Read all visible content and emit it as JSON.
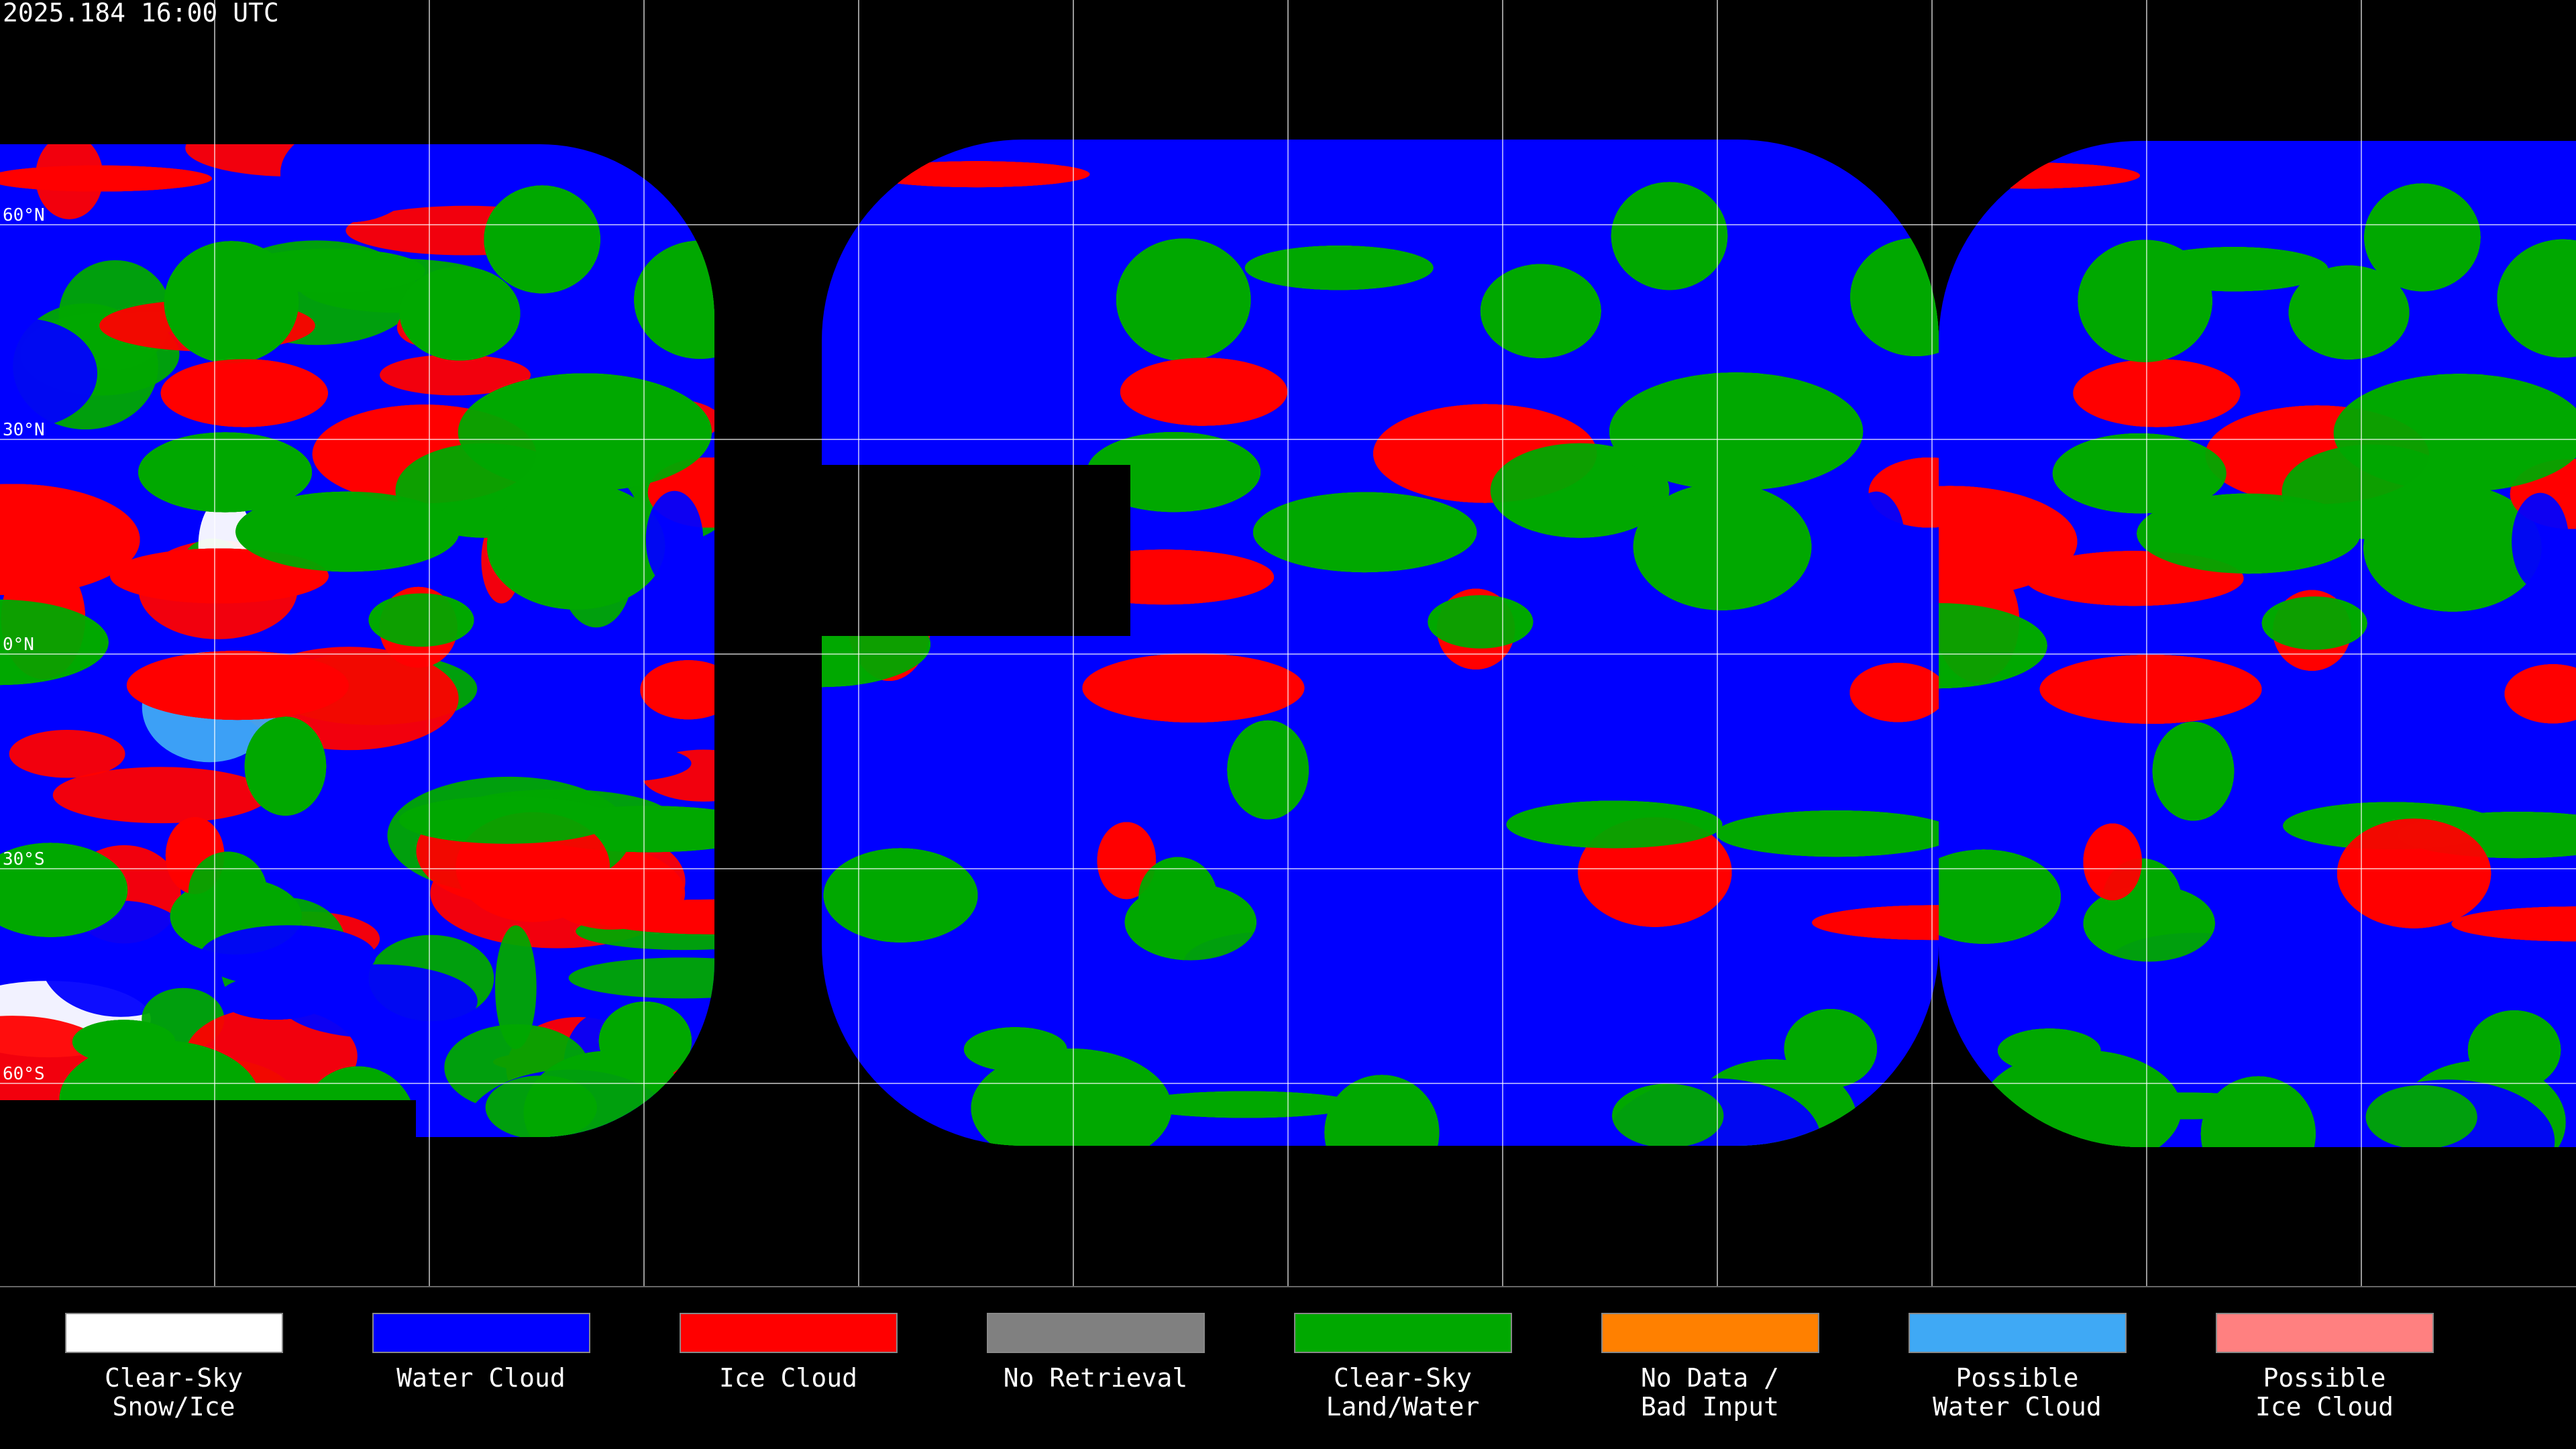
{
  "header": {
    "timestamp": "2025.184 16:00 UTC"
  },
  "latitude_labels": [
    "60°N",
    "30°N",
    "0°N",
    "30°S",
    "60°S"
  ],
  "legend": {
    "items": [
      {
        "lines": [
          "Clear-Sky",
          "Snow/Ice"
        ],
        "color": "#ffffff"
      },
      {
        "lines": [
          "Water Cloud"
        ],
        "color": "#0000ff"
      },
      {
        "lines": [
          "Ice Cloud"
        ],
        "color": "#ff0000"
      },
      {
        "lines": [
          "No Retrieval"
        ],
        "color": "#808080"
      },
      {
        "lines": [
          "Clear-Sky",
          "Land/Water"
        ],
        "color": "#00a800"
      },
      {
        "lines": [
          "No Data /",
          "Bad Input"
        ],
        "color": "#ff8000"
      },
      {
        "lines": [
          "Possible",
          "Water Cloud"
        ],
        "color": "#3fa9f5"
      },
      {
        "lines": [
          "Possible",
          "Ice Cloud"
        ],
        "color": "#ff8080"
      }
    ]
  }
}
